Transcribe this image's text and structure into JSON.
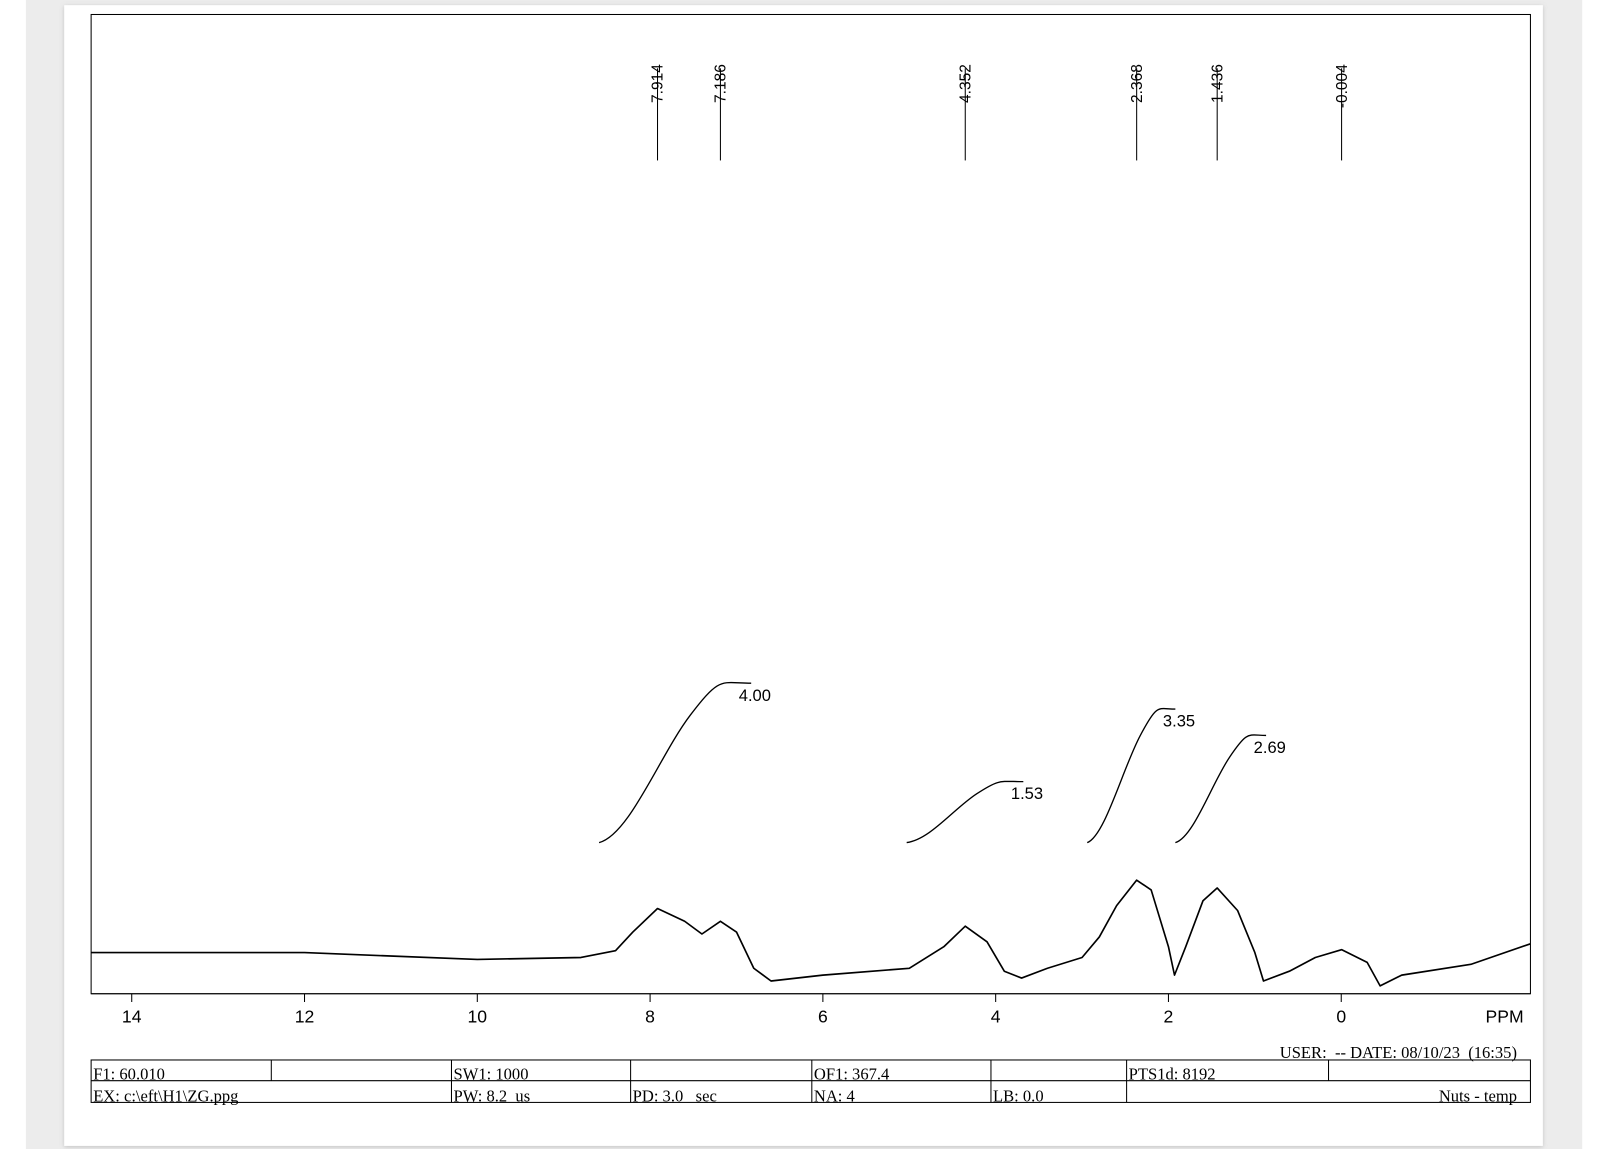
{
  "chart_data": {
    "type": "line",
    "x_label": "PPM",
    "xlim": [
      14.47,
      -2.19
    ],
    "xticks": [
      14,
      12,
      10,
      8,
      6,
      4,
      2,
      0
    ],
    "ylim": [
      0,
      100
    ],
    "color": "#000000",
    "x": [
      14.47,
      12,
      10,
      8.8,
      8.4,
      8.2,
      7.914,
      7.6,
      7.4,
      7.186,
      7.0,
      6.8,
      6.6,
      6.0,
      5.0,
      4.6,
      4.352,
      4.1,
      3.9,
      3.7,
      3.4,
      3.0,
      2.8,
      2.6,
      2.368,
      2.2,
      2.0,
      1.93,
      1.8,
      1.6,
      1.436,
      1.2,
      1.0,
      0.9,
      0.6,
      0.3,
      -0.004,
      -0.3,
      -0.45,
      -0.7,
      -1.5,
      -2.19
    ],
    "values": [
      4.2,
      4.2,
      3.5,
      3.7,
      4.4,
      6.3,
      8.7,
      7.4,
      6.1,
      7.4,
      6.3,
      2.6,
      1.3,
      1.9,
      2.6,
      4.8,
      6.9,
      5.3,
      2.3,
      1.6,
      2.6,
      3.7,
      5.8,
      9.0,
      11.6,
      10.6,
      4.8,
      1.9,
      4.8,
      9.5,
      10.8,
      8.5,
      4.2,
      1.3,
      2.3,
      3.7,
      4.5,
      3.2,
      0.8,
      1.9,
      3.0,
      5.1
    ],
    "peaks": [
      7.914,
      7.186,
      4.352,
      2.368,
      1.436,
      -0.004
    ],
    "integrals": [
      {
        "from": 8.59,
        "to": 6.83,
        "value": 4,
        "label": "4.00"
      },
      {
        "from": 5.03,
        "to": 3.68,
        "value": 1.53,
        "label": "1.53"
      },
      {
        "from": 2.94,
        "to": 1.92,
        "value": 3.35,
        "label": "3.35"
      },
      {
        "from": 1.92,
        "to": 0.87,
        "value": 2.69,
        "label": "2.69"
      }
    ]
  },
  "footer": {
    "user_date": "USER:  -- DATE: 08/10/23  (16:35)",
    "row1": [
      "F1: 60.010",
      "SW1: 1000",
      "OF1: 367.4",
      "PTS1d: 8192"
    ],
    "row2": [
      "EX: c:\\eft\\H1\\ZG.ppg",
      "PW: 8.2  us",
      "PD: 3.0   sec",
      "NA: 4",
      "LB: 0.0",
      "Nuts - temp"
    ]
  }
}
